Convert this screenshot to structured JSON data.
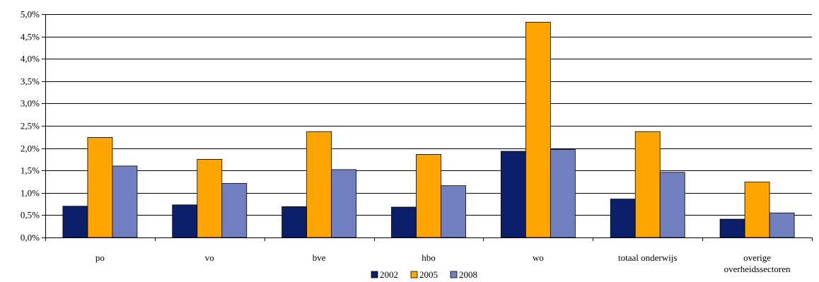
{
  "chart_data": {
    "type": "bar",
    "title": "",
    "xlabel": "",
    "ylabel": "",
    "ylim": [
      0,
      0.05
    ],
    "yticks": [
      0,
      0.005,
      0.01,
      0.015,
      0.02,
      0.025,
      0.03,
      0.035,
      0.04,
      0.045,
      0.05
    ],
    "ytick_labels": [
      "0,0%",
      "0,5%",
      "1,0%",
      "1,5%",
      "2,0%",
      "2,5%",
      "3,0%",
      "3,5%",
      "4,0%",
      "4,5%",
      "5,0%"
    ],
    "grid": true,
    "legend_position": "bottom-center",
    "categories": [
      [
        "po"
      ],
      [
        "vo"
      ],
      [
        "bve"
      ],
      [
        "hbo"
      ],
      [
        "wo"
      ],
      [
        "totaal onderwijs"
      ],
      [
        "overige",
        "overheidssectoren"
      ]
    ],
    "series": [
      {
        "name": "2002",
        "color": "#0b1f6b",
        "values": [
          0.007,
          0.0073,
          0.0069,
          0.0068,
          0.0193,
          0.0086,
          0.0041
        ]
      },
      {
        "name": "2005",
        "color": "#ffa500",
        "values": [
          0.0224,
          0.0175,
          0.0237,
          0.0186,
          0.0482,
          0.0237,
          0.0124
        ]
      },
      {
        "name": "2008",
        "color": "#6f7fc0",
        "values": [
          0.016,
          0.0121,
          0.0152,
          0.0116,
          0.0197,
          0.0146,
          0.0055
        ]
      }
    ]
  }
}
